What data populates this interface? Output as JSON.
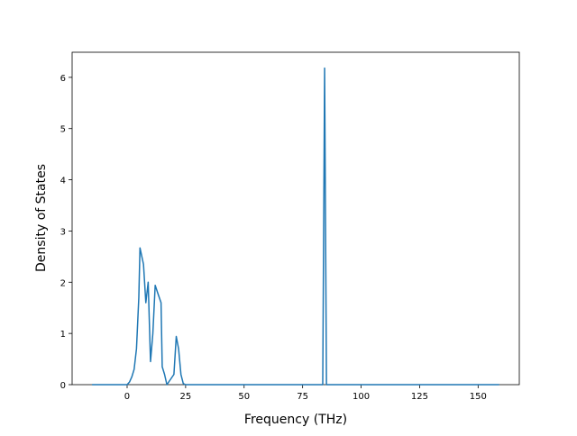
{
  "chart_data": {
    "type": "line",
    "x_label": "Frequency (THz)",
    "y_label": "Density of States",
    "x": [
      -15,
      0,
      1,
      2,
      3,
      4,
      5,
      5.5,
      7,
      8,
      9,
      10,
      11,
      12,
      13,
      14.5,
      15,
      16,
      17,
      20,
      21,
      22,
      23,
      24,
      25,
      83.6,
      84.4,
      85.2,
      159
    ],
    "values": [
      0,
      0,
      0.05,
      0.15,
      0.3,
      0.7,
      1.7,
      2.67,
      2.35,
      1.6,
      2.0,
      0.45,
      1.0,
      1.94,
      1.8,
      1.6,
      0.35,
      0.2,
      0,
      0.2,
      0.94,
      0.7,
      0.2,
      0.02,
      0,
      0,
      6.18,
      0,
      0
    ],
    "color": "#1f77b4",
    "xlim": [
      -23.5,
      167.6
    ],
    "ylim": [
      0,
      6.49
    ],
    "xticks": [
      0,
      25,
      50,
      75,
      100,
      125,
      150
    ],
    "yticks": [
      0,
      1,
      2,
      3,
      4,
      5,
      6
    ]
  }
}
